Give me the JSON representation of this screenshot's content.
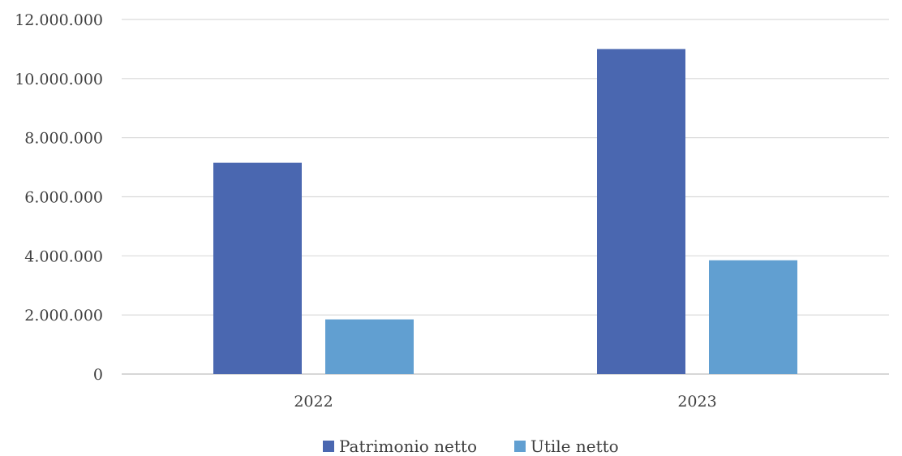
{
  "chart_data": {
    "type": "bar",
    "categories": [
      "2022",
      "2023"
    ],
    "series": [
      {
        "name": "Patrimonio netto",
        "values": [
          7150000,
          11000000
        ],
        "color": "#4a67b0"
      },
      {
        "name": "Utile netto",
        "values": [
          1850000,
          3850000
        ],
        "color": "#619fd1"
      }
    ],
    "ylim": [
      0,
      12000000
    ],
    "yticks": [
      "0",
      "2.000.000",
      "4.000.000",
      "6.000.000",
      "8.000.000",
      "10.000.000",
      "12.000.000"
    ],
    "ytick_values": [
      0,
      2000000,
      4000000,
      6000000,
      8000000,
      10000000,
      12000000
    ],
    "grid": true,
    "legend_position": "bottom",
    "title": "",
    "xlabel": "",
    "ylabel": ""
  }
}
